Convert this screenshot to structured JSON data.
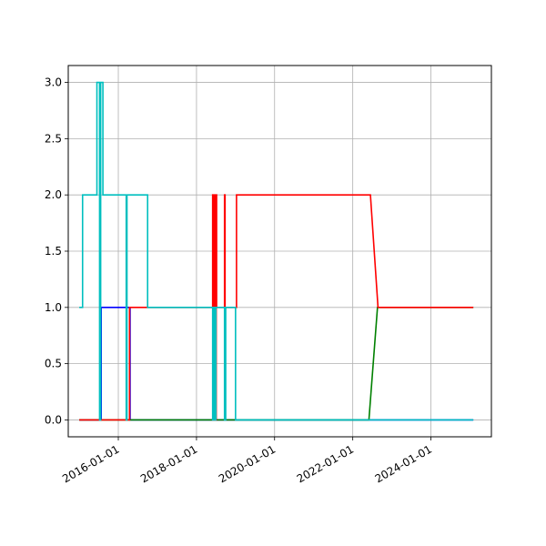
{
  "chart_data": {
    "type": "line",
    "title": "",
    "xlabel": "",
    "ylabel": "",
    "grid": true,
    "x_scale": "date",
    "xlim": [
      "2014-09-20",
      "2025-07-20"
    ],
    "ylim": [
      -0.15,
      3.15
    ],
    "x_ticks": [
      "2016-01-01",
      "2018-01-01",
      "2020-01-01",
      "2022-01-01",
      "2024-01-01"
    ],
    "y_ticks": [
      "0.0",
      "0.5",
      "1.0",
      "1.5",
      "2.0",
      "2.5",
      "3.0"
    ],
    "series": [
      {
        "color": "#0000ff",
        "points": [
          [
            "2015-01-01",
            0
          ],
          [
            "2015-07-25",
            0
          ],
          [
            "2015-07-25",
            1
          ],
          [
            "2016-04-20",
            1
          ],
          [
            "2016-04-20",
            0
          ],
          [
            "2025-02-01",
            0
          ]
        ]
      },
      {
        "color": "#008000",
        "points": [
          [
            "2015-01-01",
            0
          ],
          [
            "2022-06-01",
            0
          ],
          [
            "2022-08-20",
            1
          ],
          [
            "2025-02-01",
            1
          ]
        ]
      },
      {
        "color": "#ff0000",
        "points": [
          [
            "2015-01-01",
            0
          ],
          [
            "2016-04-15",
            0
          ],
          [
            "2016-04-15",
            1
          ],
          [
            "2018-06-01",
            1
          ],
          [
            "2018-06-01",
            2
          ],
          [
            "2018-06-05",
            2
          ],
          [
            "2018-06-05",
            0
          ],
          [
            "2018-06-10",
            0
          ],
          [
            "2018-06-10",
            2
          ],
          [
            "2018-06-14",
            2
          ],
          [
            "2018-06-14",
            0
          ],
          [
            "2018-06-18",
            0
          ],
          [
            "2018-06-18",
            2
          ],
          [
            "2018-06-22",
            2
          ],
          [
            "2018-06-22",
            0
          ],
          [
            "2018-06-26",
            0
          ],
          [
            "2018-06-26",
            2
          ],
          [
            "2018-06-30",
            2
          ],
          [
            "2018-06-30",
            0
          ],
          [
            "2018-07-04",
            0
          ],
          [
            "2018-07-04",
            2
          ],
          [
            "2018-07-08",
            2
          ],
          [
            "2018-07-08",
            1
          ],
          [
            "2018-09-20",
            1
          ],
          [
            "2018-09-20",
            2
          ],
          [
            "2018-09-25",
            2
          ],
          [
            "2018-09-25",
            1
          ],
          [
            "2019-01-10",
            1
          ],
          [
            "2019-01-10",
            2
          ],
          [
            "2022-06-15",
            2
          ],
          [
            "2022-08-25",
            1
          ],
          [
            "2025-02-01",
            1
          ]
        ]
      },
      {
        "color": "#00bfbf",
        "points": [
          [
            "2015-01-01",
            1
          ],
          [
            "2015-02-01",
            1
          ],
          [
            "2015-02-01",
            2
          ],
          [
            "2015-06-15",
            2
          ],
          [
            "2015-06-15",
            3
          ],
          [
            "2015-07-10",
            3
          ],
          [
            "2015-07-10",
            0
          ],
          [
            "2015-07-20",
            0
          ],
          [
            "2015-07-20",
            3
          ],
          [
            "2015-08-10",
            3
          ],
          [
            "2015-08-10",
            2
          ],
          [
            "2016-03-15",
            2
          ],
          [
            "2016-03-15",
            0
          ],
          [
            "2016-03-22",
            0
          ],
          [
            "2016-03-22",
            2
          ],
          [
            "2016-10-01",
            2
          ],
          [
            "2016-10-01",
            1
          ],
          [
            "2018-06-01",
            1
          ],
          [
            "2018-06-01",
            0
          ],
          [
            "2018-06-06",
            0
          ],
          [
            "2018-06-06",
            1
          ],
          [
            "2018-06-12",
            1
          ],
          [
            "2018-06-12",
            0
          ],
          [
            "2018-06-18",
            0
          ],
          [
            "2018-06-18",
            1
          ],
          [
            "2018-06-24",
            1
          ],
          [
            "2018-06-24",
            0
          ],
          [
            "2018-07-01",
            0
          ],
          [
            "2018-07-01",
            1
          ],
          [
            "2018-09-20",
            1
          ],
          [
            "2018-09-20",
            0
          ],
          [
            "2018-10-01",
            0
          ],
          [
            "2018-10-01",
            1
          ],
          [
            "2019-01-01",
            1
          ],
          [
            "2019-01-01",
            0
          ],
          [
            "2025-02-01",
            0
          ]
        ]
      }
    ]
  }
}
